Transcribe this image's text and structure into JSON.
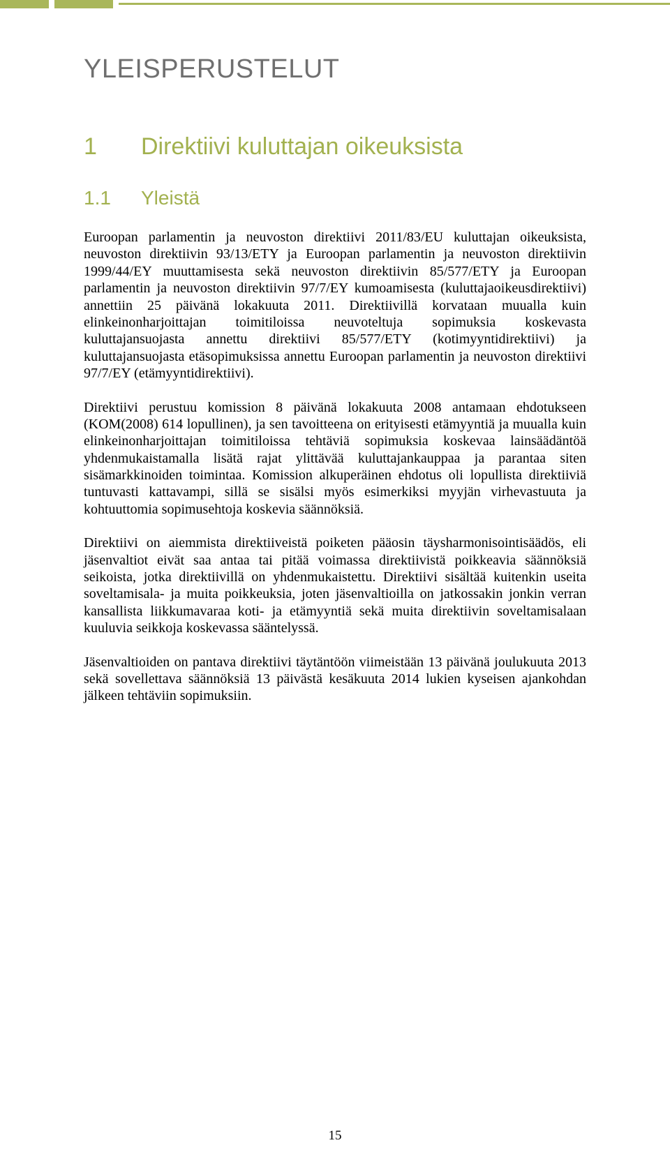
{
  "colors": {
    "accent_green": "#a2b14f",
    "bar_green": "#a9b75a",
    "title_gray": "#6f6f6f",
    "body_text": "#000000",
    "background": "#ffffff"
  },
  "typography": {
    "main_title_fontsize": 38,
    "section_fontsize": 34,
    "subsection_fontsize": 28,
    "body_fontsize": 20,
    "heading_font": "Arial",
    "body_font": "Times New Roman"
  },
  "main_title": "YLEISPERUSTELUT",
  "section": {
    "number": "1",
    "title": "Direktiivi kuluttajan oikeuksista"
  },
  "subsection": {
    "number": "1.1",
    "title": "Yleistä"
  },
  "paragraphs": {
    "p1": "Euroopan parlamentin ja neuvoston direktiivi 2011/83/EU kuluttajan oikeuksista, neuvoston direktiivin 93/13/ETY ja Euroopan parlamentin ja neuvoston direktiivin 1999/44/EY muuttamisesta sekä neuvoston direktiivin 85/577/ETY ja Euroopan parlamentin ja neuvoston direktiivin 97/7/EY kumoamisesta (kuluttajaoikeusdirektiivi) annettiin 25 päivänä lokakuuta 2011. Direktiivillä korvataan muualla kuin elinkeinonharjoittajan toimitiloissa neuvoteltuja sopimuksia koskevasta kuluttajansuojasta annettu direktiivi 85/577/ETY (kotimyyntidirektiivi) ja kuluttajansuojasta etäsopimuksissa annettu Euroopan parlamentin ja neuvoston direktiivi 97/7/EY (etämyyntidirektiivi).",
    "p2": "Direktiivi perustuu komission 8 päivänä lokakuuta 2008 antamaan ehdotukseen (KOM(2008) 614 lopullinen), ja sen tavoitteena on erityisesti etämyyntiä ja muualla kuin elinkeinonharjoittajan toimitiloissa tehtäviä sopimuksia koskevaa lainsäädäntöä yhdenmukaistamalla lisätä rajat ylittävää kuluttajankauppaa ja parantaa siten sisämarkkinoiden toimintaa. Komission alkuperäinen ehdotus oli lopullista direktiiviä tuntuvasti kattavampi, sillä se sisälsi myös esimerkiksi myyjän virhevastuuta ja kohtuuttomia sopimusehtoja koskevia säännöksiä.",
    "p3": "Direktiivi on aiemmista direktiiveistä poiketen pääosin täysharmonisointisäädös, eli jäsenvaltiot eivät saa antaa tai pitää voimassa direktiivistä poikkeavia säännöksiä seikoista, jotka direktiivillä on yhdenmukaistettu. Direktiivi sisältää kuitenkin useita soveltamisala- ja muita poikkeuksia, joten jäsenvaltioilla on jatkossakin jonkin verran kansallista liikkumavaraa koti- ja etämyyntiä sekä muita direktiivin soveltamisalaan kuuluvia seikkoja koskevassa sääntelyssä.",
    "p4": "Jäsenvaltioiden on pantava direktiivi täytäntöön viimeistään 13 päivänä joulukuuta 2013 sekä sovellettava säännöksiä 13 päivästä kesäkuuta 2014 lukien kyseisen ajankohdan jälkeen tehtäviin sopimuksiin."
  },
  "page_number": "15"
}
